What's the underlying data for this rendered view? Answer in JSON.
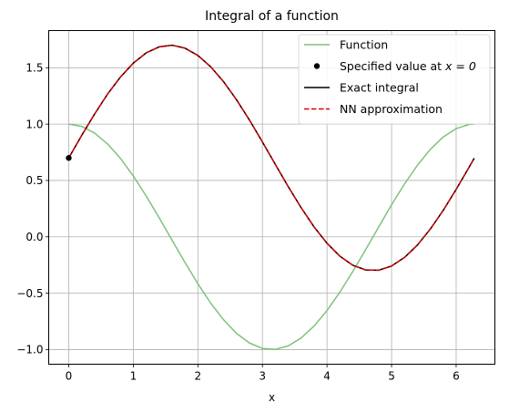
{
  "chart_data": {
    "type": "line",
    "title": "Integral of a function",
    "xlabel": "x",
    "ylabel": "",
    "xlim": [
      -0.31,
      6.6
    ],
    "ylim": [
      -1.13,
      1.83
    ],
    "xticks": [
      0,
      1,
      2,
      3,
      4,
      5,
      6
    ],
    "xtick_labels": [
      "0",
      "1",
      "2",
      "3",
      "4",
      "5",
      "6"
    ],
    "yticks": [
      -1.0,
      -0.5,
      0.0,
      0.5,
      1.0,
      1.5
    ],
    "ytick_labels": [
      "−1.0",
      "−0.5",
      "0.0",
      "0.5",
      "1.0",
      "1.5"
    ],
    "grid": true,
    "legend_position": "top-right",
    "x": [
      0.0,
      0.2,
      0.4,
      0.6,
      0.8,
      1.0,
      1.2,
      1.4,
      1.6,
      1.8,
      2.0,
      2.2,
      2.4,
      2.6,
      2.8,
      3.0,
      3.2,
      3.4,
      3.6,
      3.8,
      4.0,
      4.2,
      4.4,
      4.6,
      4.8,
      5.0,
      5.2,
      5.4,
      5.6,
      5.8,
      6.0,
      6.2,
      6.28
    ],
    "series": [
      {
        "name": "Function",
        "style": "line",
        "color": "#7fc27f",
        "values": [
          1.0,
          0.98,
          0.921,
          0.825,
          0.697,
          0.54,
          0.362,
          0.17,
          -0.029,
          -0.227,
          -0.416,
          -0.589,
          -0.737,
          -0.857,
          -0.942,
          -0.99,
          -0.998,
          -0.967,
          -0.897,
          -0.791,
          -0.654,
          -0.49,
          -0.307,
          -0.112,
          0.087,
          0.284,
          0.469,
          0.635,
          0.776,
          0.886,
          0.96,
          0.997,
          1.0
        ]
      },
      {
        "name": "Exact integral",
        "style": "line",
        "color": "#000000",
        "values": [
          0.7,
          0.899,
          1.089,
          1.265,
          1.417,
          1.541,
          1.632,
          1.685,
          1.7,
          1.674,
          1.609,
          1.508,
          1.375,
          1.215,
          1.035,
          0.841,
          0.642,
          0.445,
          0.258,
          0.088,
          -0.057,
          -0.172,
          -0.252,
          -0.294,
          -0.296,
          -0.259,
          -0.183,
          -0.073,
          0.069,
          0.235,
          0.421,
          0.617,
          0.698
        ]
      },
      {
        "name": "NN approximation",
        "style": "dashed",
        "color": "#e00000",
        "values": [
          0.7,
          0.899,
          1.089,
          1.265,
          1.417,
          1.541,
          1.632,
          1.685,
          1.7,
          1.674,
          1.609,
          1.508,
          1.375,
          1.215,
          1.035,
          0.841,
          0.642,
          0.445,
          0.258,
          0.088,
          -0.057,
          -0.172,
          -0.252,
          -0.294,
          -0.296,
          -0.259,
          -0.183,
          -0.073,
          0.069,
          0.235,
          0.421,
          0.617,
          0.698
        ]
      }
    ],
    "points": [
      {
        "name": "Specified value at x = 0",
        "x": 0,
        "y": 0.7,
        "color": "#000000"
      }
    ],
    "legend": [
      {
        "label": "Function",
        "kind": "line",
        "color": "#7fc27f"
      },
      {
        "label": "Specified value at ",
        "math": "x = 0",
        "kind": "dot",
        "color": "#000000"
      },
      {
        "label": "Exact integral",
        "kind": "line",
        "color": "#000000"
      },
      {
        "label": "NN approximation",
        "kind": "dashed",
        "color": "#e00000"
      }
    ]
  }
}
